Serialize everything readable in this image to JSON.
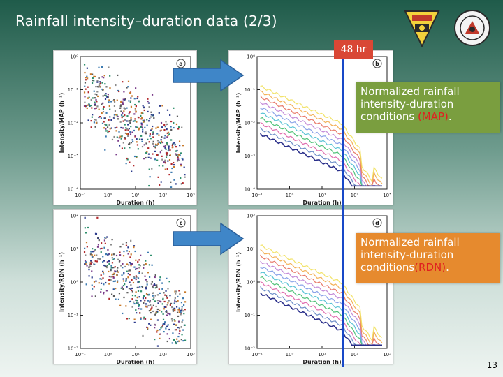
{
  "slide": {
    "title": "Rainfall intensity–duration data (2/3)",
    "page_number": "13",
    "marker_label": "48 hr",
    "callout_map": {
      "prefix": "Normalized rainfall intensity-duration conditions ",
      "highlight": "(MAP)",
      "suffix": "."
    },
    "callout_rdn": {
      "prefix": "Normalized rainfall intensity-duration conditions",
      "highlight": "(RDN)",
      "suffix": "."
    },
    "logo_left": "university-emblem",
    "logo_right": "research-seal",
    "colors": {
      "marker": "#d94735",
      "line": "#1848c8",
      "callout_map": "#7a9e3f",
      "callout_rdn": "#e68a2e",
      "arrow": "#3f86c8"
    }
  },
  "chart_data": [
    {
      "panel": "a",
      "type": "scatter",
      "xlabel": "Duration (h)",
      "ylabel": "Intensity/MAP (h⁻¹)",
      "x_ticks": [
        "10⁻¹",
        "10⁰",
        "10¹",
        "10²",
        "10³"
      ],
      "y_ticks": [
        "10⁰",
        "10⁻¹",
        "10⁻²",
        "10⁻³",
        "10⁻⁴"
      ],
      "xlim": [
        -1,
        3
      ],
      "ylim": [
        -4,
        0
      ]
    },
    {
      "panel": "b",
      "type": "line",
      "xlabel": "Duration (h)",
      "ylabel": "Intensity/MAP (h⁻¹)",
      "x_ticks": [
        "10⁻¹",
        "10⁰",
        "10¹",
        "10²",
        "10³"
      ],
      "y_ticks": [
        "10⁰",
        "10⁻¹",
        "10⁻²",
        "10⁻³",
        "10⁻⁴"
      ],
      "xlim": [
        -1,
        3
      ],
      "ylim": [
        -4,
        0
      ]
    },
    {
      "panel": "c",
      "type": "scatter",
      "xlabel": "Duration (h)",
      "ylabel": "Intensity/RDN (h⁻¹)",
      "x_ticks": [
        "10⁻¹",
        "10⁰",
        "10¹",
        "10²",
        "10³"
      ],
      "y_ticks": [
        "10²",
        "10¹",
        "10⁰",
        "10⁻¹",
        "10⁻²"
      ],
      "xlim": [
        -1,
        3
      ],
      "ylim": [
        -2,
        2
      ]
    },
    {
      "panel": "d",
      "type": "line",
      "xlabel": "Duration (h)",
      "ylabel": "Intensity/RDN (h⁻¹)",
      "x_ticks": [
        "10⁻¹",
        "10⁰",
        "10¹",
        "10²",
        "10³"
      ],
      "y_ticks": [
        "10²",
        "10¹",
        "10⁰",
        "10⁻¹",
        "10⁻²"
      ],
      "xlim": [
        -1,
        3
      ],
      "ylim": [
        -2,
        2
      ]
    }
  ]
}
